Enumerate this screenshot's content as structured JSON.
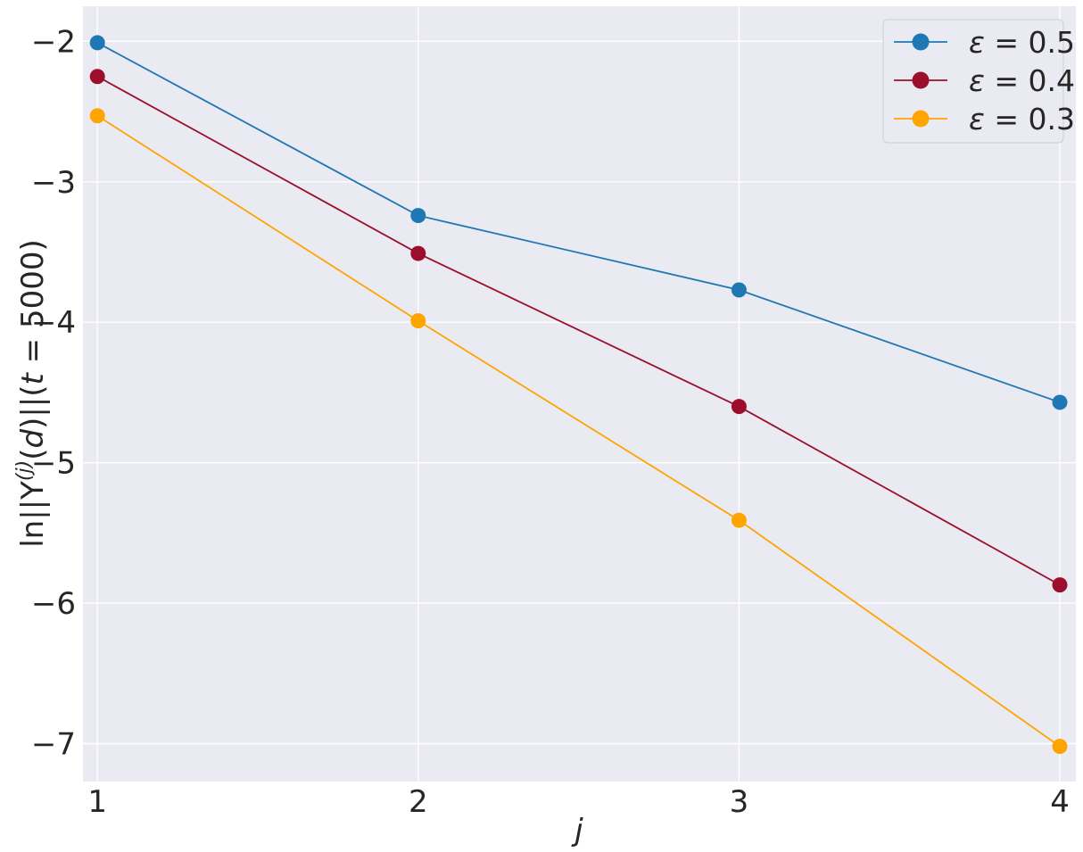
{
  "chart_data": {
    "type": "line",
    "xlabel": "j",
    "ylabel": "ln||Y(j)(d)||(t = 5000)",
    "ylabel_parts": {
      "prefix": "ln||Y",
      "superscript": "(j)",
      "middle": "(",
      "italic_d": "d",
      "close": ")||(",
      "italic_t": "t",
      "suffix": " = 5000)"
    },
    "x_ticks": [
      1,
      2,
      3,
      4
    ],
    "y_ticks": [
      -2,
      -3,
      -4,
      -5,
      -6,
      -7
    ],
    "y_tick_labels": [
      "−2",
      "−3",
      "−4",
      "−5",
      "−6",
      "−7"
    ],
    "xlim": [
      0.955,
      4.05
    ],
    "ylim": [
      -7.27,
      -1.75
    ],
    "grid": true,
    "legend_position": "top-right",
    "x": [
      1,
      2,
      3,
      4
    ],
    "series": [
      {
        "name": "ε = 0.5",
        "legend_symbol": "ε",
        "legend_value": " = 0.5",
        "color": "#1f77b4",
        "values": [
          -2.01,
          -3.24,
          -3.77,
          -4.57
        ]
      },
      {
        "name": "ε = 0.4",
        "legend_symbol": "ε",
        "legend_value": " = 0.4",
        "color": "#9b0f2c",
        "values": [
          -2.25,
          -3.51,
          -4.6,
          -5.87
        ]
      },
      {
        "name": "ε = 0.3",
        "legend_symbol": "ε",
        "legend_value": " = 0.3",
        "color": "#ffa500",
        "values": [
          -2.53,
          -3.99,
          -5.41,
          -7.02
        ]
      }
    ]
  }
}
